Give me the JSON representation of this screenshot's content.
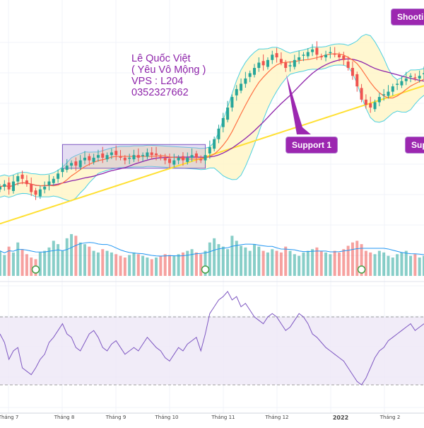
{
  "author_note": {
    "line1": "Lê Quốc Việt",
    "line2": "( Yêu Vô Mộng )",
    "line3": "VPS : L204",
    "line4": "0352327662"
  },
  "callouts": {
    "shooting": "Shooting",
    "support1": "Support 1",
    "support_cut": "Supp"
  },
  "colors": {
    "up_candle": "#26a69a",
    "down_candle": "#ef5350",
    "bollinger_fill": "#fff5c4",
    "bollinger_band": "#4dd0e1",
    "ma_orange": "#ff7043",
    "ma_purple": "#8e24aa",
    "ma_yellow": "#ffe033",
    "range_box": "#b39ddb",
    "callout_bg": "#9c27b0",
    "rsi_line": "#7e57c2",
    "rsi_band": "#ede7f6"
  },
  "chart_data": {
    "type": "candlestick",
    "x_axis_labels": [
      "Tháng 7",
      "Tháng 8",
      "Tháng 9",
      "Tháng 10",
      "Tháng 11",
      "Tháng 12",
      "2022",
      "Tháng 2"
    ],
    "series": [
      {
        "name": "price_close",
        "values": [
          100,
          101,
          99,
          102,
          104,
          103,
          101,
          98,
          97,
          99,
          100,
          102,
          103,
          105,
          107,
          108,
          109,
          108,
          110,
          111,
          110,
          111,
          112,
          111,
          112,
          113,
          112,
          111,
          110,
          111,
          112,
          111,
          112,
          113,
          112,
          112,
          111,
          110,
          109,
          110,
          111,
          110,
          111,
          112,
          111,
          110,
          112,
          115,
          118,
          122,
          126,
          130,
          134,
          137,
          139,
          141,
          143,
          145,
          147,
          146,
          148,
          150,
          149,
          147,
          145,
          146,
          148,
          149,
          150,
          151,
          152,
          150,
          149,
          150,
          151,
          150,
          149,
          148,
          145,
          142,
          138,
          133,
          131,
          130,
          132,
          134,
          135,
          136,
          138,
          139,
          140,
          141,
          142,
          141,
          142,
          143
        ]
      },
      {
        "name": "volume",
        "values": [
          30,
          25,
          35,
          28,
          40,
          32,
          26,
          22,
          20,
          28,
          30,
          34,
          42,
          38,
          30,
          45,
          50,
          48,
          40,
          38,
          35,
          30,
          28,
          32,
          30,
          28,
          26,
          24,
          22,
          25,
          28,
          26,
          24,
          22,
          20,
          22,
          24,
          26,
          25,
          24,
          26,
          28,
          30,
          32,
          28,
          26,
          30,
          40,
          45,
          38,
          35,
          32,
          48,
          42,
          36,
          34,
          30,
          38,
          35,
          30,
          28,
          32,
          30,
          28,
          35,
          30,
          26,
          24,
          28,
          30,
          32,
          34,
          30,
          28,
          26,
          30,
          28,
          32,
          36,
          40,
          42,
          38,
          30,
          28,
          26,
          30,
          28,
          24,
          22,
          26,
          28,
          30,
          24,
          26,
          22,
          24
        ]
      },
      {
        "name": "rsi",
        "values": [
          60,
          55,
          45,
          50,
          52,
          40,
          38,
          36,
          40,
          45,
          48,
          55,
          58,
          62,
          66,
          60,
          58,
          52,
          50,
          55,
          60,
          62,
          58,
          52,
          50,
          54,
          56,
          52,
          48,
          50,
          52,
          50,
          54,
          58,
          55,
          52,
          50,
          46,
          44,
          48,
          52,
          50,
          54,
          56,
          58,
          50,
          60,
          72,
          76,
          80,
          82,
          85,
          80,
          82,
          76,
          78,
          74,
          70,
          68,
          66,
          70,
          72,
          70,
          66,
          62,
          64,
          68,
          72,
          70,
          66,
          60,
          58,
          55,
          52,
          50,
          48,
          46,
          44,
          40,
          36,
          32,
          30,
          34,
          40,
          46,
          50,
          52,
          56,
          58,
          60,
          62,
          64,
          66,
          62,
          64,
          66
        ]
      }
    ]
  }
}
